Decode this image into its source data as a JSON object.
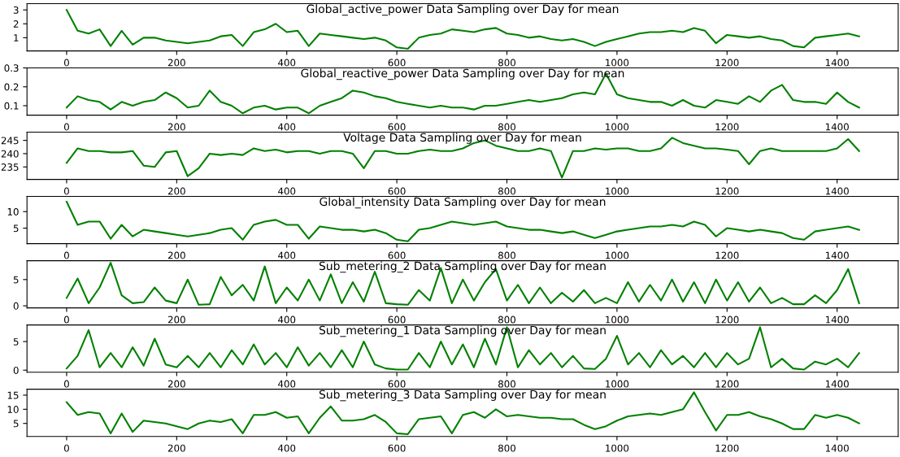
{
  "chart_data": [
    {
      "type": "line",
      "title": "Global_active_power Data Sampling over Day for mean",
      "xlim": [
        -72,
        1511
      ],
      "xticks": [
        0,
        200,
        400,
        600,
        800,
        1000,
        1200,
        1400
      ],
      "ylim": [
        0.05,
        3.45
      ],
      "yticks": [
        1,
        2,
        3
      ],
      "series": [
        {
          "color": "#008000",
          "x": [
            0,
            20,
            40,
            60,
            80,
            100,
            120,
            140,
            160,
            180,
            200,
            220,
            240,
            260,
            280,
            300,
            320,
            340,
            360,
            380,
            400,
            420,
            440,
            460,
            480,
            500,
            520,
            540,
            560,
            580,
            600,
            620,
            640,
            660,
            680,
            700,
            720,
            740,
            760,
            780,
            800,
            820,
            840,
            860,
            880,
            900,
            920,
            940,
            960,
            980,
            1000,
            1020,
            1040,
            1060,
            1080,
            1100,
            1120,
            1140,
            1160,
            1180,
            1200,
            1220,
            1240,
            1260,
            1280,
            1300,
            1320,
            1340,
            1360,
            1380,
            1400,
            1420,
            1440
          ],
          "values": [
            3.0,
            1.5,
            1.3,
            1.6,
            0.4,
            1.5,
            0.5,
            1.0,
            1.0,
            0.8,
            0.7,
            0.6,
            0.7,
            0.8,
            1.1,
            1.2,
            0.4,
            1.4,
            1.6,
            2.0,
            1.4,
            1.5,
            0.4,
            1.3,
            1.2,
            1.1,
            1.0,
            0.9,
            1.0,
            0.8,
            0.3,
            0.2,
            1.0,
            1.2,
            1.3,
            1.6,
            1.5,
            1.4,
            1.6,
            1.7,
            1.3,
            1.2,
            1.0,
            1.1,
            0.9,
            0.8,
            0.9,
            0.7,
            0.4,
            0.7,
            0.9,
            1.1,
            1.3,
            1.4,
            1.4,
            1.5,
            1.4,
            1.7,
            1.5,
            0.6,
            1.2,
            1.1,
            1.0,
            1.1,
            0.9,
            0.8,
            0.4,
            0.3,
            1.0,
            1.1,
            1.2,
            1.3,
            1.1
          ]
        }
      ]
    },
    {
      "type": "line",
      "title": "Global_reactive_power Data Sampling over Day for mean",
      "xlim": [
        -72,
        1511
      ],
      "xticks": [
        0,
        200,
        400,
        600,
        800,
        1000,
        1200,
        1400
      ],
      "ylim": [
        0.05,
        0.3
      ],
      "yticks": [
        0.1,
        0.2,
        0.3
      ],
      "series": [
        {
          "color": "#008000",
          "x": [
            0,
            20,
            40,
            60,
            80,
            100,
            120,
            140,
            160,
            180,
            200,
            220,
            240,
            260,
            280,
            300,
            320,
            340,
            360,
            380,
            400,
            420,
            440,
            460,
            480,
            500,
            520,
            540,
            560,
            580,
            600,
            620,
            640,
            660,
            680,
            700,
            720,
            740,
            760,
            780,
            800,
            820,
            840,
            860,
            880,
            900,
            920,
            940,
            960,
            980,
            1000,
            1020,
            1040,
            1060,
            1080,
            1100,
            1120,
            1140,
            1160,
            1180,
            1200,
            1220,
            1240,
            1260,
            1280,
            1300,
            1320,
            1340,
            1360,
            1380,
            1400,
            1420,
            1440
          ],
          "values": [
            0.09,
            0.15,
            0.13,
            0.12,
            0.08,
            0.12,
            0.1,
            0.12,
            0.13,
            0.17,
            0.14,
            0.09,
            0.1,
            0.18,
            0.12,
            0.1,
            0.06,
            0.09,
            0.1,
            0.08,
            0.09,
            0.09,
            0.06,
            0.1,
            0.12,
            0.14,
            0.18,
            0.17,
            0.15,
            0.14,
            0.12,
            0.11,
            0.1,
            0.09,
            0.1,
            0.09,
            0.09,
            0.08,
            0.1,
            0.1,
            0.11,
            0.12,
            0.13,
            0.12,
            0.13,
            0.14,
            0.16,
            0.17,
            0.16,
            0.27,
            0.16,
            0.14,
            0.13,
            0.12,
            0.12,
            0.1,
            0.13,
            0.1,
            0.09,
            0.13,
            0.12,
            0.11,
            0.15,
            0.12,
            0.18,
            0.21,
            0.13,
            0.12,
            0.12,
            0.11,
            0.17,
            0.12,
            0.09
          ]
        }
      ]
    },
    {
      "type": "line",
      "title": "Voltage Data Sampling over Day for mean",
      "xlim": [
        -72,
        1511
      ],
      "xticks": [
        0,
        200,
        400,
        600,
        800,
        1000,
        1200,
        1400
      ],
      "ylim": [
        230.3,
        248.1
      ],
      "yticks": [
        235,
        240,
        245
      ],
      "series": [
        {
          "color": "#008000",
          "x": [
            0,
            20,
            40,
            60,
            80,
            100,
            120,
            140,
            160,
            180,
            200,
            220,
            240,
            260,
            280,
            300,
            320,
            340,
            360,
            380,
            400,
            420,
            440,
            460,
            480,
            500,
            520,
            540,
            560,
            580,
            600,
            620,
            640,
            660,
            680,
            700,
            720,
            740,
            760,
            780,
            800,
            820,
            840,
            860,
            880,
            900,
            920,
            940,
            960,
            980,
            1000,
            1020,
            1040,
            1060,
            1080,
            1100,
            1120,
            1140,
            1160,
            1180,
            1200,
            1220,
            1240,
            1260,
            1280,
            1300,
            1320,
            1340,
            1360,
            1380,
            1400,
            1420,
            1440
          ],
          "values": [
            236.5,
            242,
            241,
            241,
            240.5,
            240.5,
            241,
            235.5,
            235,
            240.5,
            241,
            231.5,
            234.5,
            240,
            239.5,
            240,
            239.5,
            242,
            241,
            241.5,
            240.5,
            241,
            241,
            240,
            241,
            241,
            240,
            234.5,
            241,
            241,
            240,
            240,
            241,
            241.5,
            241,
            241,
            242,
            244,
            245,
            243,
            242,
            241,
            241,
            242,
            241,
            231,
            241,
            241,
            242,
            241.5,
            242,
            242,
            241,
            241,
            242,
            246,
            244,
            243,
            242,
            242,
            241.5,
            241,
            236,
            241,
            242,
            241,
            241,
            241,
            241,
            241,
            242,
            245.5,
            241
          ]
        }
      ]
    },
    {
      "type": "line",
      "title": "Global_intensity Data Sampling over Day for mean",
      "xlim": [
        -72,
        1511
      ],
      "xticks": [
        0,
        200,
        400,
        600,
        800,
        1000,
        1200,
        1400
      ],
      "ylim": [
        0.3,
        14.6
      ],
      "yticks": [
        5,
        10
      ],
      "series": [
        {
          "color": "#008000",
          "x": [
            0,
            20,
            40,
            60,
            80,
            100,
            120,
            140,
            160,
            180,
            200,
            220,
            240,
            260,
            280,
            300,
            320,
            340,
            360,
            380,
            400,
            420,
            440,
            460,
            480,
            500,
            520,
            540,
            560,
            580,
            600,
            620,
            640,
            660,
            680,
            700,
            720,
            740,
            760,
            780,
            800,
            820,
            840,
            860,
            880,
            900,
            920,
            940,
            960,
            980,
            1000,
            1020,
            1040,
            1060,
            1080,
            1100,
            1120,
            1140,
            1160,
            1180,
            1200,
            1220,
            1240,
            1260,
            1280,
            1300,
            1320,
            1340,
            1360,
            1380,
            1400,
            1420,
            1440
          ],
          "values": [
            13,
            6,
            7,
            7,
            1.8,
            6,
            2.5,
            4.5,
            4,
            3.5,
            3,
            2.5,
            3,
            3.5,
            4.5,
            5,
            1.5,
            6,
            7,
            7.5,
            6,
            6,
            1.8,
            5.5,
            5,
            4.5,
            4.5,
            4,
            4.5,
            3.5,
            1.5,
            1,
            4.5,
            5,
            6,
            7,
            6.5,
            6,
            6.5,
            7,
            5.5,
            5,
            4.5,
            4.5,
            4,
            3.5,
            4,
            3,
            2,
            3,
            4,
            4.5,
            5,
            5.5,
            5.5,
            6,
            5.5,
            7,
            6,
            2.5,
            5,
            4.5,
            4,
            4.5,
            4,
            3.5,
            2,
            1.5,
            4,
            4.5,
            5,
            5.5,
            4.5
          ]
        }
      ]
    },
    {
      "type": "line",
      "title": "Sub_metering_2 Data Sampling over Day for mean",
      "xlim": [
        -72,
        1511
      ],
      "xticks": [
        0,
        200,
        400,
        600,
        800,
        1000,
        1200,
        1400
      ],
      "ylim": [
        -0.4,
        8.6
      ],
      "yticks": [
        0,
        5
      ],
      "series": [
        {
          "color": "#008000",
          "x": [
            0,
            20,
            40,
            60,
            80,
            100,
            120,
            140,
            160,
            180,
            200,
            220,
            240,
            260,
            280,
            300,
            320,
            340,
            360,
            380,
            400,
            420,
            440,
            460,
            480,
            500,
            520,
            540,
            560,
            580,
            600,
            620,
            640,
            660,
            680,
            700,
            720,
            740,
            760,
            780,
            800,
            820,
            840,
            860,
            880,
            900,
            920,
            940,
            960,
            980,
            1000,
            1020,
            1040,
            1060,
            1080,
            1100,
            1120,
            1140,
            1160,
            1180,
            1200,
            1220,
            1240,
            1260,
            1280,
            1300,
            1320,
            1340,
            1360,
            1380,
            1400,
            1420,
            1440
          ],
          "values": [
            1.5,
            5.2,
            0.5,
            3.5,
            8.2,
            2.0,
            0.5,
            0.7,
            3.5,
            1.0,
            0.5,
            5.0,
            0.2,
            0.3,
            5.5,
            2.0,
            4.0,
            1.0,
            7.5,
            0.5,
            3.5,
            1.0,
            5.0,
            1.0,
            6.0,
            0.5,
            4.5,
            0.8,
            6.5,
            0.5,
            0.3,
            0.2,
            3.0,
            1.0,
            7.2,
            0.5,
            5.0,
            1.0,
            4.5,
            7.0,
            1.0,
            4.0,
            0.5,
            3.5,
            0.5,
            2.5,
            0.8,
            3.0,
            0.5,
            1.5,
            0.5,
            4.5,
            0.8,
            4.0,
            1.0,
            5.0,
            0.8,
            4.5,
            0.5,
            5.0,
            1.0,
            4.5,
            0.8,
            3.5,
            0.5,
            1.5,
            0.3,
            0.3,
            2.0,
            0.5,
            3.0,
            7.0,
            0.5
          ]
        }
      ]
    },
    {
      "type": "line",
      "title": "Sub_metering_1 Data Sampling over Day for mean",
      "xlim": [
        -72,
        1511
      ],
      "xticks": [
        0,
        200,
        400,
        600,
        800,
        1000,
        1200,
        1400
      ],
      "ylim": [
        -0.35,
        7.9
      ],
      "yticks": [
        0,
        5
      ],
      "series": [
        {
          "color": "#008000",
          "x": [
            0,
            20,
            40,
            60,
            80,
            100,
            120,
            140,
            160,
            180,
            200,
            220,
            240,
            260,
            280,
            300,
            320,
            340,
            360,
            380,
            400,
            420,
            440,
            460,
            480,
            500,
            520,
            540,
            560,
            580,
            600,
            620,
            640,
            660,
            680,
            700,
            720,
            740,
            760,
            780,
            800,
            820,
            840,
            860,
            880,
            900,
            920,
            940,
            960,
            980,
            1000,
            1020,
            1040,
            1060,
            1080,
            1100,
            1120,
            1140,
            1160,
            1180,
            1200,
            1220,
            1240,
            1260,
            1280,
            1300,
            1320,
            1340,
            1360,
            1380,
            1400,
            1420,
            1440
          ],
          "values": [
            0.3,
            2.5,
            7.0,
            0.5,
            3.0,
            0.5,
            4.0,
            0.8,
            5.5,
            1.0,
            0.5,
            2.5,
            0.5,
            3.0,
            0.5,
            3.5,
            1.0,
            4.5,
            1.0,
            3.0,
            0.5,
            4.0,
            0.8,
            3.0,
            0.5,
            3.5,
            0.5,
            5.0,
            1.0,
            0.3,
            0.1,
            0.1,
            3.0,
            0.5,
            5.0,
            1.0,
            4.5,
            0.5,
            5.5,
            1.0,
            7.5,
            0.5,
            3.5,
            1.0,
            3.0,
            0.5,
            2.5,
            0.3,
            0.2,
            2.0,
            6.0,
            1.0,
            3.0,
            0.5,
            3.5,
            1.0,
            2.5,
            0.5,
            3.0,
            0.5,
            3.0,
            1.0,
            2.0,
            7.5,
            0.5,
            2.0,
            0.3,
            0.1,
            1.5,
            1.0,
            2.0,
            0.5,
            3.0
          ]
        }
      ]
    },
    {
      "type": "line",
      "title": "Sub_metering_3 Data Sampling over Day for mean",
      "xlim": [
        -72,
        1511
      ],
      "xticks": [
        0,
        200,
        400,
        600,
        800,
        1000,
        1200,
        1400
      ],
      "ylim": [
        0.4,
        17.1
      ],
      "yticks": [
        5,
        10,
        15
      ],
      "series": [
        {
          "color": "#008000",
          "x": [
            0,
            20,
            40,
            60,
            80,
            100,
            120,
            140,
            160,
            180,
            200,
            220,
            240,
            260,
            280,
            300,
            320,
            340,
            360,
            380,
            400,
            420,
            440,
            460,
            480,
            500,
            520,
            540,
            560,
            580,
            600,
            620,
            640,
            660,
            680,
            700,
            720,
            740,
            760,
            780,
            800,
            820,
            840,
            860,
            880,
            900,
            920,
            940,
            960,
            980,
            1000,
            1020,
            1040,
            1060,
            1080,
            1100,
            1120,
            1140,
            1160,
            1180,
            1200,
            1220,
            1240,
            1260,
            1280,
            1300,
            1320,
            1340,
            1360,
            1380,
            1400,
            1420,
            1440
          ],
          "values": [
            12.5,
            8,
            9,
            8.5,
            1.5,
            8.5,
            2,
            6,
            5.5,
            5,
            4,
            3,
            5,
            6,
            5.5,
            6.5,
            1.5,
            8,
            8,
            9,
            7,
            7.5,
            1.5,
            7,
            11,
            6,
            6,
            6.5,
            8,
            5.5,
            1.5,
            1.2,
            6.5,
            7,
            7.5,
            1.5,
            8,
            9,
            7,
            10,
            7.5,
            8,
            7.5,
            7,
            7,
            6.5,
            6.5,
            4.5,
            3,
            4,
            6,
            7.5,
            8,
            8.5,
            8,
            9,
            10,
            16,
            9,
            2.5,
            8,
            8,
            9,
            7.5,
            6.5,
            5,
            3,
            3,
            8,
            7,
            8,
            7,
            5
          ]
        }
      ]
    }
  ]
}
